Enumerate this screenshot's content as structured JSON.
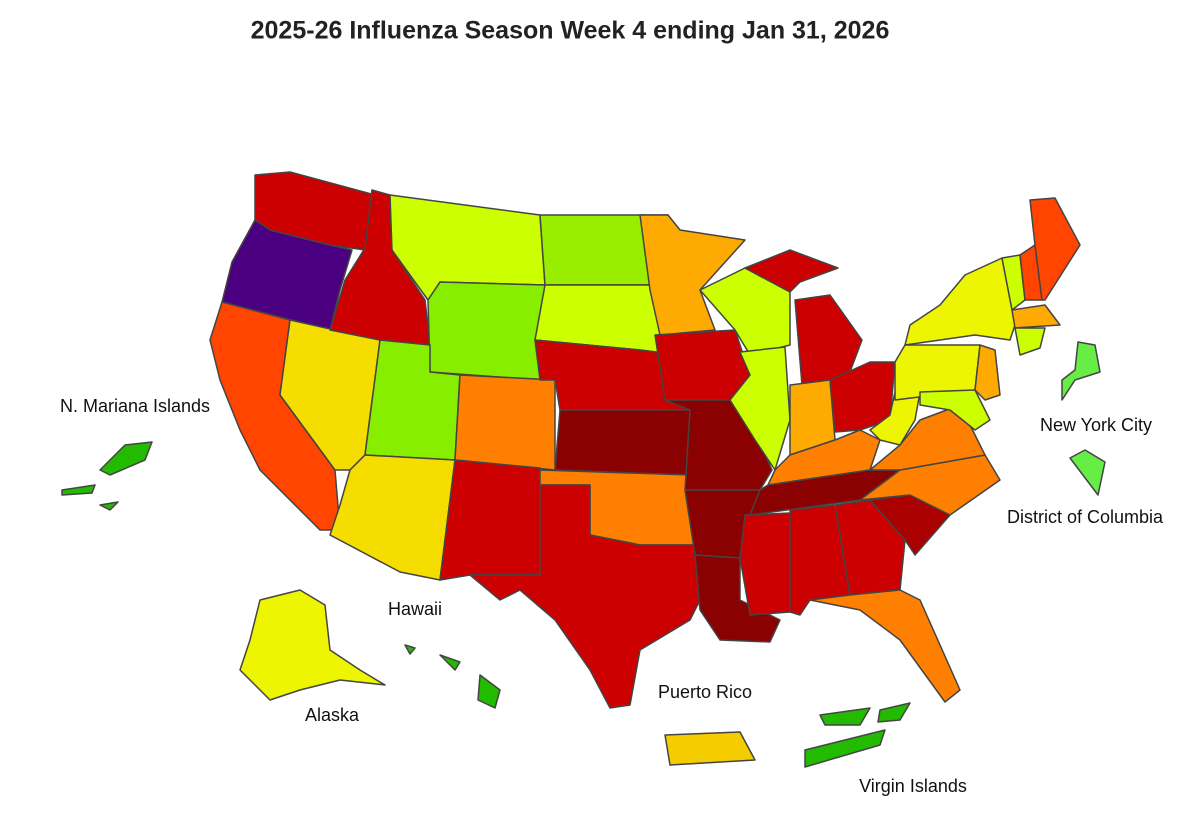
{
  "title": "2025-26 Influenza Season Week 4 ending Jan 31, 2026",
  "labels": [
    "N. Mariana Islands",
    "New York City",
    "District of Columbia",
    "Hawaii",
    "Alaska",
    "Puerto Rico",
    "Virgin Islands"
  ]
}
